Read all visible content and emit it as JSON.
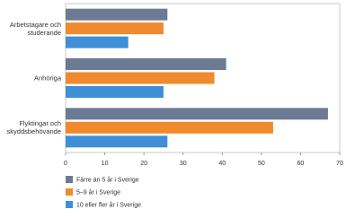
{
  "chart_data": {
    "type": "hbar",
    "categories": [
      "Arbetstagare och studerande",
      "Anhöriga",
      "Flyktingar och skyddsbehövande"
    ],
    "series": [
      {
        "name": "Färre än 5 år i Sverige",
        "color": "#6d7a93",
        "values": [
          26,
          41,
          67
        ]
      },
      {
        "name": "5–9 år i Sverige",
        "color": "#f08a2c",
        "values": [
          25,
          38,
          53
        ]
      },
      {
        "name": "10 eller fler år i Sverige",
        "color": "#3e8fd6",
        "values": [
          16,
          25,
          26
        ]
      }
    ],
    "xlim": [
      0,
      70
    ],
    "xticks": [
      0,
      10,
      20,
      30,
      40,
      50,
      60,
      70
    ],
    "legend": "bottom"
  }
}
